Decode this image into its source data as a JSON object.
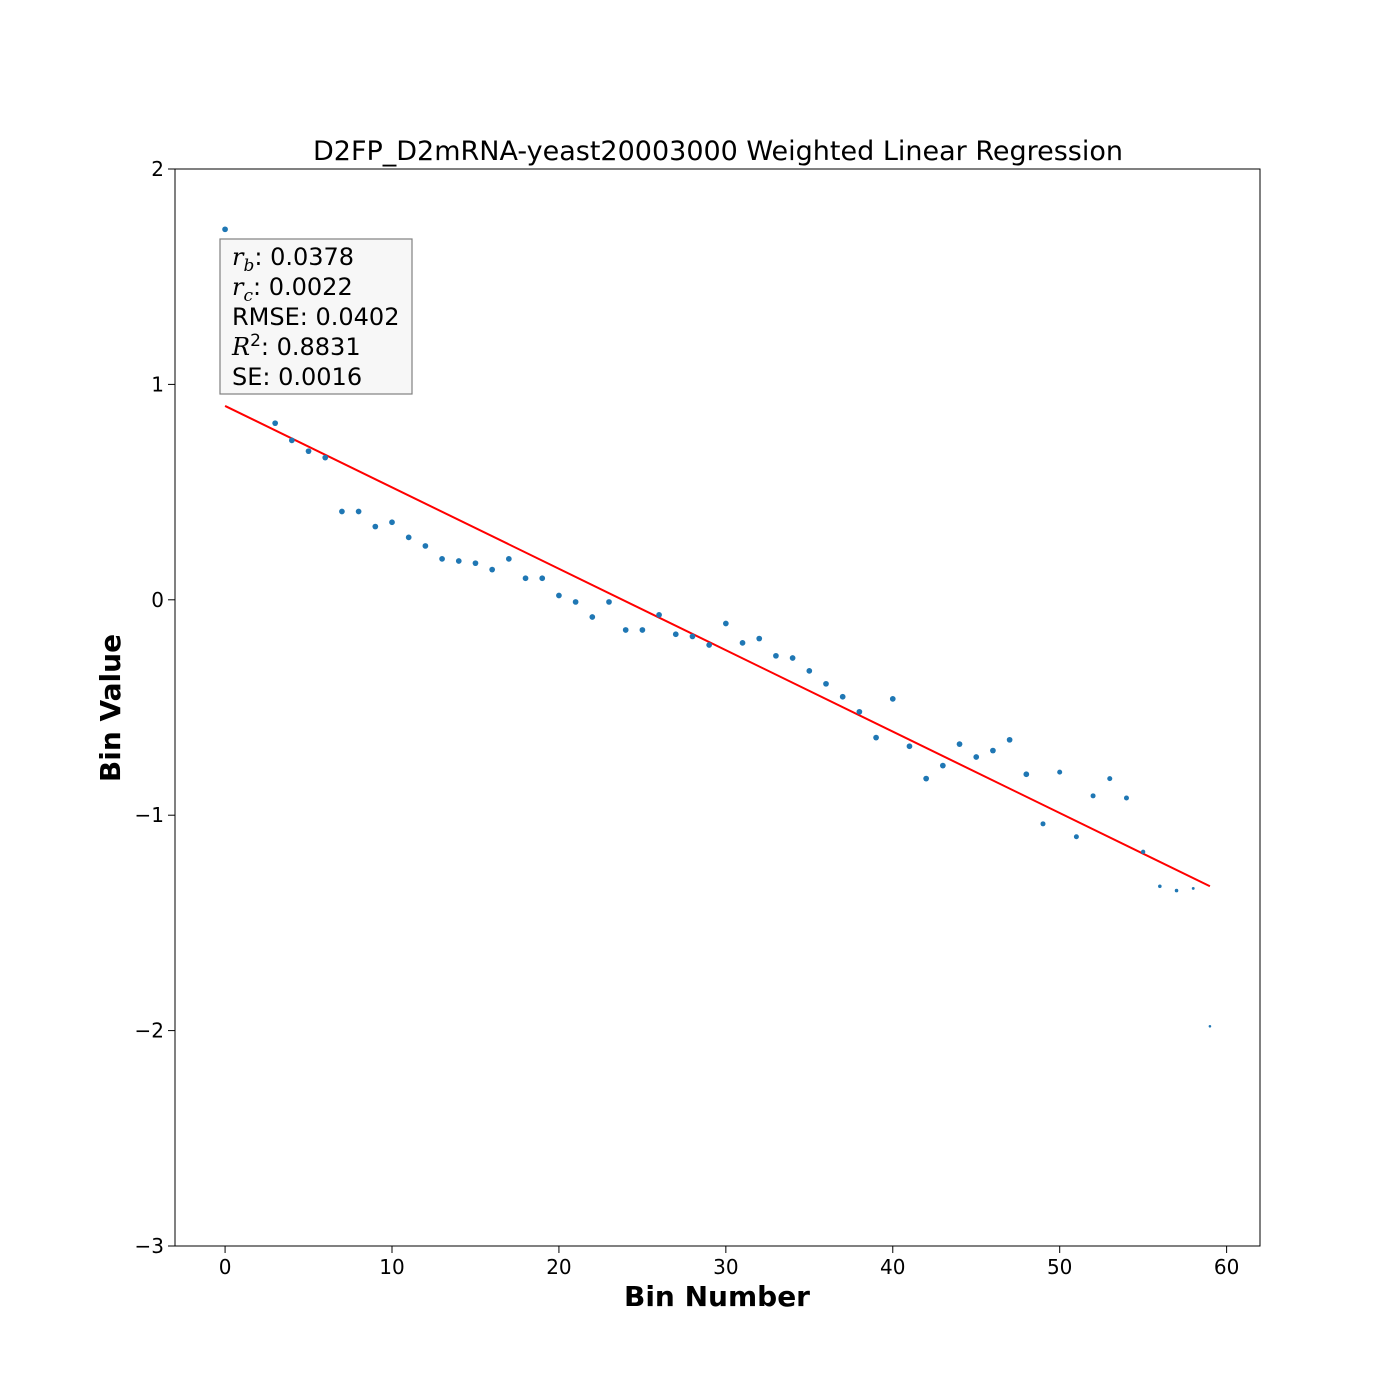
{
  "chart_data": {
    "type": "scatter",
    "title": "D2FP_D2mRNA-yeast20003000 Weighted Linear Regression",
    "xlabel": "Bin Number",
    "ylabel": "Bin Value",
    "xlim": [
      -3,
      62
    ],
    "ylim": [
      -3,
      2
    ],
    "xticks": [
      0,
      10,
      20,
      30,
      40,
      50,
      60
    ],
    "xtick_labels": [
      "0",
      "10",
      "20",
      "30",
      "40",
      "50",
      "60"
    ],
    "yticks": [
      2,
      1,
      0,
      -1,
      -2,
      -3
    ],
    "ytick_labels": [
      "2",
      "1",
      "0",
      "−1",
      "−2",
      "−3"
    ],
    "grid": false,
    "colors": {
      "points": "#1f77b4",
      "fit_line": "#ff0000",
      "box_bg": "#f7f7f7",
      "box_border": "#808080"
    },
    "series": [
      {
        "kind": "points",
        "x": [
          0,
          1,
          2,
          3,
          4,
          5,
          6,
          7,
          8,
          9,
          10,
          11,
          12,
          13,
          14,
          15,
          16,
          17,
          18,
          19,
          20,
          21,
          22,
          23,
          24,
          25,
          26,
          27,
          28,
          29,
          30,
          31,
          32,
          33,
          34,
          35,
          36,
          37,
          38,
          39,
          40,
          41,
          42,
          43,
          44,
          45,
          46,
          47,
          48,
          49,
          50,
          51,
          52,
          53,
          54,
          55,
          56,
          57,
          58,
          59
        ],
        "y": [
          1.72,
          1.48,
          1.25,
          0.82,
          0.74,
          0.69,
          0.66,
          0.41,
          0.41,
          0.34,
          0.36,
          0.29,
          0.25,
          0.19,
          0.18,
          0.17,
          0.14,
          0.19,
          0.1,
          0.1,
          0.02,
          -0.01,
          -0.08,
          -0.01,
          -0.14,
          -0.14,
          -0.07,
          -0.16,
          -0.17,
          -0.21,
          -0.11,
          -0.2,
          -0.18,
          -0.26,
          -0.27,
          -0.33,
          -0.39,
          -0.45,
          -0.52,
          -0.64,
          -0.46,
          -0.68,
          -0.83,
          -0.77,
          -0.67,
          -0.73,
          -0.7,
          -0.65,
          -0.81,
          -1.04,
          -0.8,
          -1.1,
          -0.91,
          -0.83,
          -0.92,
          -1.17,
          -1.33,
          -1.35,
          -1.34,
          -1.98
        ],
        "sizes": [
          4,
          4,
          4,
          4,
          4,
          4,
          4,
          4,
          4,
          4,
          4,
          4,
          4,
          4,
          4,
          4,
          4,
          4,
          4,
          4,
          4,
          4,
          4,
          4,
          4,
          4,
          4,
          4,
          4,
          4,
          4,
          4,
          4,
          4,
          4,
          4,
          4,
          4,
          4,
          4,
          4,
          4,
          4,
          4,
          4,
          4,
          4,
          4,
          4,
          3.5,
          3.5,
          3.5,
          3.5,
          3.5,
          3.5,
          3,
          2.5,
          2.5,
          2,
          1.8
        ]
      },
      {
        "kind": "line",
        "x": [
          0,
          59
        ],
        "y": [
          0.9,
          -1.33
        ]
      }
    ],
    "stats_box": [
      {
        "sym": "r",
        "sub": "b",
        "text": ": 0.0378"
      },
      {
        "sym": "r",
        "sub": "c",
        "text": ": 0.0022"
      },
      {
        "text": "RMSE: 0.0402"
      },
      {
        "sym": "R",
        "sup": "2",
        "text": ": 0.8831"
      },
      {
        "text": "SE: 0.0016"
      }
    ]
  }
}
